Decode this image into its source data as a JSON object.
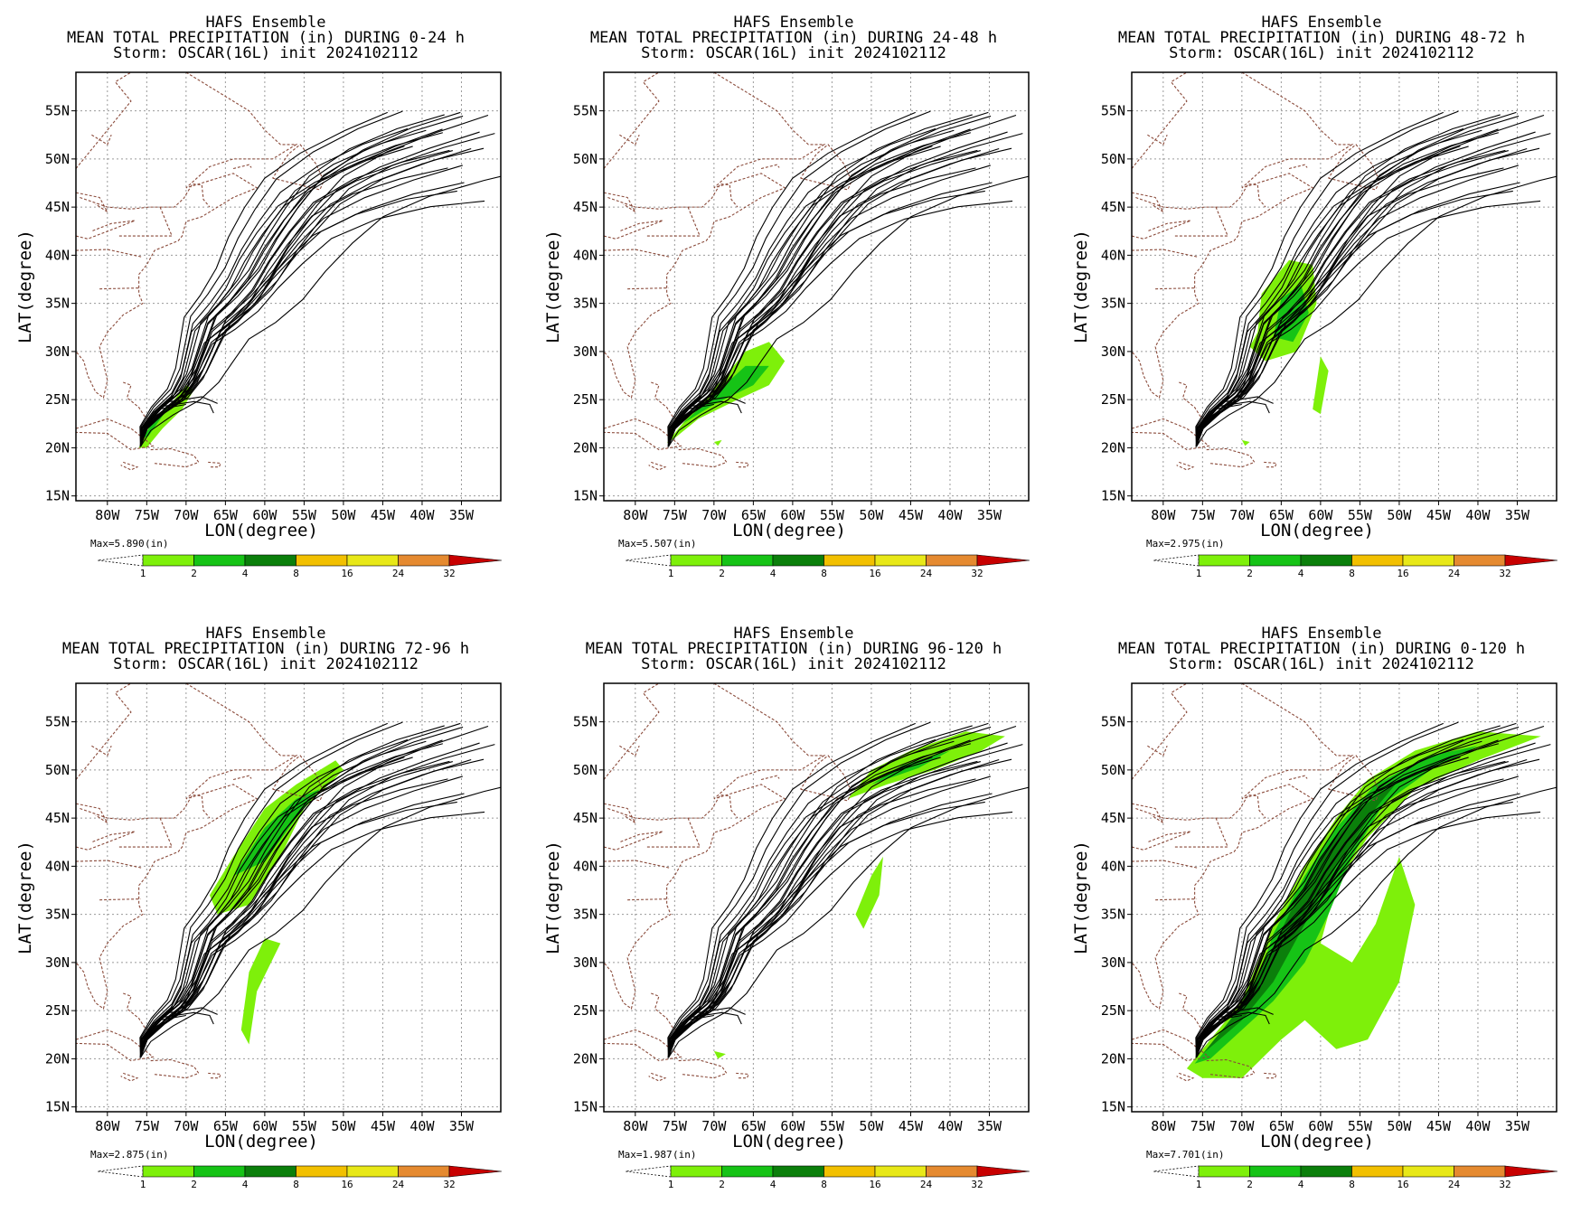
{
  "figure": {
    "model": "HAFS Ensemble",
    "storm_line": "Storm: OSCAR(16L) init 2024102112",
    "x_axis_label": "LON(degree)",
    "y_axis_label": "LAT(degree)",
    "lon_ticks": [
      "80W",
      "75W",
      "70W",
      "65W",
      "60W",
      "55W",
      "50W",
      "45W",
      "40W",
      "35W"
    ],
    "lat_ticks": [
      "15N",
      "20N",
      "25N",
      "30N",
      "35N",
      "40N",
      "45N",
      "50N",
      "55N"
    ],
    "colorbar": {
      "unit": "(in)",
      "levels": [
        "1",
        "2",
        "4",
        "8",
        "16",
        "24",
        "32"
      ],
      "colors": [
        "#7ef00a",
        "#16c316",
        "#0b7f0b",
        "#f2c000",
        "#e8e818",
        "#e58a30",
        "#c80000"
      ]
    }
  },
  "panels": [
    {
      "title": "MEAN TOTAL PRECIPITATION (in) DURING  0-24 h",
      "max": "Max=5.890"
    },
    {
      "title": "MEAN TOTAL PRECIPITATION (in) DURING 24-48 h",
      "max": "Max=5.507"
    },
    {
      "title": "MEAN TOTAL PRECIPITATION (in) DURING 48-72 h",
      "max": "Max=2.975"
    },
    {
      "title": "MEAN TOTAL PRECIPITATION (in) DURING 72-96 h",
      "max": "Max=2.875"
    },
    {
      "title": "MEAN TOTAL PRECIPITATION (in) DURING 96-120 h",
      "max": "Max=1.987"
    },
    {
      "title": "MEAN TOTAL PRECIPITATION (in) DURING 0-120 h",
      "max": "Max=7.701"
    }
  ]
}
